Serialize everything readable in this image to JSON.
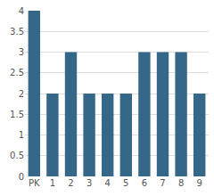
{
  "chart_data": {
    "type": "bar",
    "categories": [
      "PK",
      "1",
      "2",
      "3",
      "4",
      "5",
      "6",
      "7",
      "8",
      "9"
    ],
    "values": [
      4,
      2,
      3,
      2,
      2,
      2,
      3,
      3,
      3,
      2
    ],
    "color": "#356789",
    "ylim": [
      0,
      4
    ],
    "yticks": [
      0,
      0.5,
      1,
      1.5,
      2,
      2.5,
      3,
      3.5,
      4
    ],
    "grid": true
  }
}
